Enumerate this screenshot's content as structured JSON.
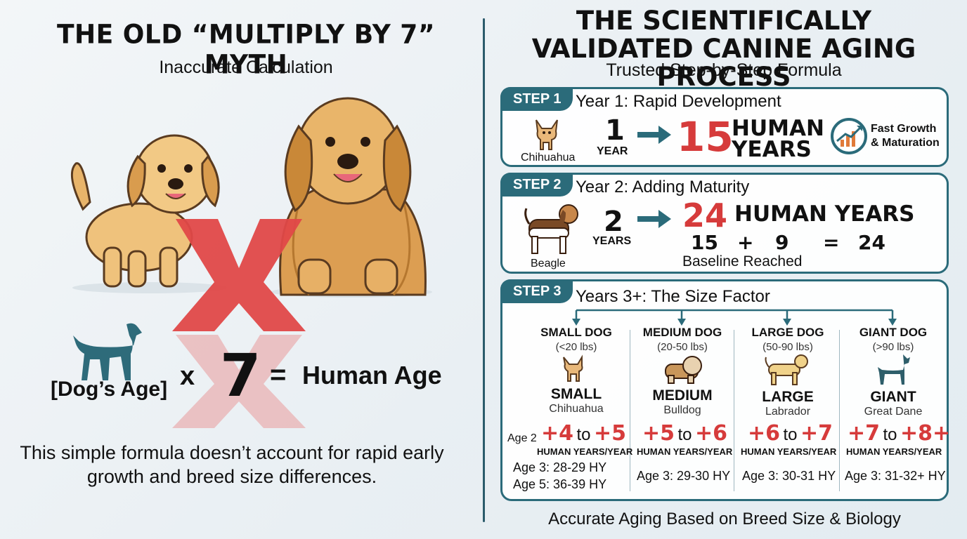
{
  "left": {
    "title": "THE OLD “MULTIPLY BY 7” MYTH",
    "subtitle": "Inaccurate Calculation",
    "formula": {
      "dog_age": "[Dog’s Age]",
      "times": "x",
      "seven": "7",
      "equals": "=",
      "result": "Human Age"
    },
    "note": "This simple formula doesn’t account for rapid early growth and breed size differences."
  },
  "right": {
    "title": "THE SCIENTIFICALLY VALIDATED CANINE AGING PROCESS",
    "subtitle": "Trusted Step-by-Step Formula",
    "step1": {
      "pill": "STEP 1",
      "title": "Year 1: Rapid Development",
      "breed": "Chihuahua",
      "num": "1",
      "unit": "YEAR",
      "result": "15",
      "result_label_1": "HUMAN",
      "result_label_2": "YEARS",
      "badge_1": "Fast Growth",
      "badge_2": "& Maturation"
    },
    "step2": {
      "pill": "STEP 2",
      "title": "Year 2: Adding Maturity",
      "breed": "Beagle",
      "num": "2",
      "unit": "YEARS",
      "result": "24",
      "result_label": "HUMAN YEARS",
      "a": "15",
      "plus": "+",
      "b": "9",
      "eq": "=",
      "c": "24",
      "baseline": "Baseline Reached"
    },
    "step3": {
      "pill": "STEP 3",
      "title": "Years 3+: The Size Factor",
      "age2_label": "Age 2",
      "columns": [
        {
          "size": "SMALL DOG",
          "weight": "(<20 lbs)",
          "name": "SMALL",
          "breed": "Chihuahua",
          "from": "+4",
          "to_word": "to",
          "to": "+5",
          "unit": "HUMAN YEARS/YEAR",
          "age3": "Age 3: 28-29 HY",
          "age5": "Age 5: 36-39 HY"
        },
        {
          "size": "MEDIUM DOG",
          "weight": "(20-50 lbs)",
          "name": "MEDIUM",
          "breed": "Bulldog",
          "from": "+5",
          "to_word": "to",
          "to": "+6",
          "unit": "HUMAN YEARS/YEAR",
          "age3": "Age 3: 29-30 HY"
        },
        {
          "size": "LARGE DOG",
          "weight": "(50-90 lbs)",
          "name": "LARGE",
          "breed": "Labrador",
          "from": "+6",
          "to_word": "to",
          "to": "+7",
          "unit": "HUMAN YEARS/YEAR",
          "age3": "Age 3: 30-31 HY"
        },
        {
          "size": "GIANT DOG",
          "weight": "(>90 lbs)",
          "name": "GIANT",
          "breed": "Great Dane",
          "from": "+7",
          "to_word": "to",
          "to": "+8+",
          "unit": "HUMAN YEARS/YEAR",
          "age3": "Age 3: 31-32+ HY"
        }
      ]
    },
    "footer": "Accurate Aging Based on Breed Size & Biology"
  },
  "colors": {
    "accent": "#2b6b7a",
    "red": "#d63b3b",
    "dog_fur": "#e8b46a",
    "silhouette": "#2e6b7a"
  }
}
